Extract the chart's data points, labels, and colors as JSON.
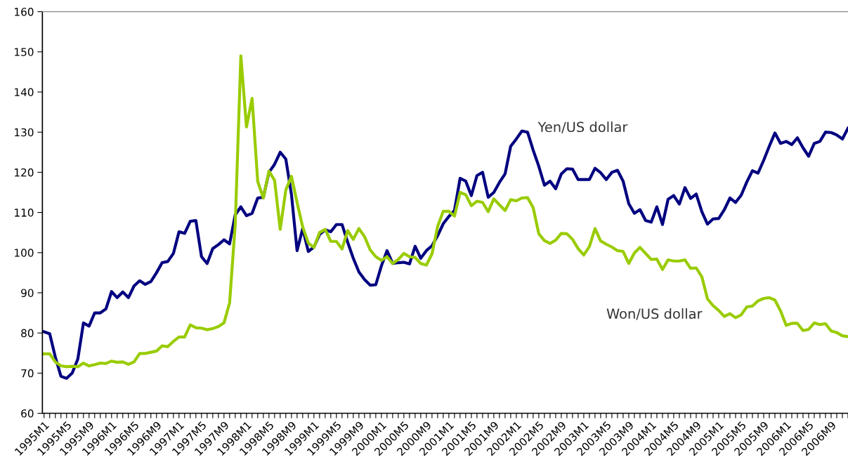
{
  "chart_data": {
    "type": "line",
    "categories": [
      "1995M1",
      null,
      null,
      null,
      "1995M5",
      null,
      null,
      null,
      "1995M9",
      null,
      null,
      null,
      "1996M1",
      null,
      null,
      null,
      "1996M5",
      null,
      null,
      null,
      "1996M9",
      null,
      null,
      null,
      "1997M1",
      null,
      null,
      null,
      "1997M5",
      null,
      null,
      null,
      "1997M9",
      null,
      null,
      null,
      "1998M1",
      null,
      null,
      null,
      "1998M5",
      null,
      null,
      null,
      "1998M9",
      null,
      null,
      null,
      "1999M1",
      null,
      null,
      null,
      "1999M5",
      null,
      null,
      null,
      "1999M9",
      null,
      null,
      null,
      "2000M1",
      null,
      null,
      null,
      "2000M5",
      null,
      null,
      null,
      "2000M9",
      null,
      null,
      null,
      "2001M1",
      null,
      null,
      null,
      "2001M5",
      null,
      null,
      null,
      "2001M9",
      null,
      null,
      null,
      "2002M1",
      null,
      null,
      null,
      "2002M5",
      null,
      null,
      null,
      "2002M9",
      null,
      null,
      null,
      "2003M1",
      null,
      null,
      null,
      "2003M5",
      null,
      null,
      null,
      "2003M9",
      null,
      null,
      null,
      "2004M1",
      null,
      null,
      null,
      "2004M5",
      null,
      null,
      null,
      "2004M9",
      null,
      null,
      null,
      "2005M1",
      null,
      null,
      null,
      "2005M5",
      null,
      null,
      null,
      "2005M9",
      null,
      null,
      null,
      "2006M1",
      null,
      null,
      null,
      "2006M5",
      null,
      null,
      null,
      "2006M9",
      null,
      null,
      null
    ],
    "series": [
      {
        "name": "Yen/US dollar",
        "color": "#000080",
        "values": [
          80.3,
          79.8,
          74,
          69.2,
          68.7,
          70,
          73.5,
          82.5,
          81.7,
          85,
          85,
          86,
          90.3,
          88.8,
          90.2,
          88.8,
          91.7,
          93,
          92.1,
          92.8,
          95,
          97.5,
          97.8,
          99.8,
          105.2,
          104.8,
          107.8,
          108,
          99,
          97.3,
          101,
          102,
          103.2,
          102.2,
          109.4,
          111.4,
          109.2,
          109.8,
          113.6,
          113.8,
          120,
          122,
          125,
          123.3,
          114.5,
          100.5,
          106,
          100.3,
          101.4,
          104.5,
          105.7,
          105.2,
          107,
          107,
          102.6,
          98.6,
          95.2,
          93.3,
          91.9,
          92,
          96.7,
          100.5,
          97.3,
          97.5,
          97.6,
          97.2,
          101.6,
          98.6,
          100.5,
          101.7,
          104.2,
          107.2,
          109,
          110.5,
          118.5,
          117.8,
          114.2,
          119.2,
          120,
          113.8,
          115,
          117.5,
          119.6,
          126.5,
          128.3,
          130.3,
          130,
          125.5,
          121.5,
          116.8,
          117.8,
          115.9,
          119.6,
          120.9,
          120.8,
          118.2,
          118.2,
          118.2,
          121,
          119.9,
          118.2,
          120,
          120.5,
          117.8,
          112.2,
          109.8,
          110.7,
          108,
          107.6,
          111.4,
          107,
          113.3,
          114.2,
          112.1,
          116.2,
          113.5,
          114.6,
          110.2,
          107.1,
          108.4,
          108.5,
          110.7,
          113.6,
          112.5,
          114.3,
          117.6,
          120.4,
          119.8,
          123,
          126.5,
          129.8,
          127.2,
          127.7,
          126.9,
          128.6,
          126.1,
          124,
          127.2,
          127.7,
          130,
          129.9,
          129.3,
          128.3,
          131
        ]
      },
      {
        "name": "Won/US dollar",
        "color": "#99cc00",
        "values": [
          74.8,
          74.8,
          72.8,
          71.8,
          71.6,
          71.7,
          71.6,
          72.5,
          71.8,
          72.1,
          72.5,
          72.4,
          73,
          72.7,
          72.8,
          72.2,
          72.8,
          74.9,
          74.9,
          75.2,
          75.5,
          76.8,
          76.6,
          77.9,
          79,
          79,
          82,
          81.3,
          81.2,
          80.8,
          81.1,
          81.6,
          82.5,
          87.5,
          107,
          149,
          131.3,
          138.4,
          117.7,
          113.6,
          120.3,
          118,
          105.8,
          115.6,
          119,
          112.5,
          106.4,
          102.4,
          101.3,
          105,
          105.8,
          102.8,
          102.8,
          100.9,
          105.5,
          103.3,
          106,
          104,
          100.7,
          99,
          98.1,
          99,
          97.3,
          98.3,
          99.8,
          99,
          98.8,
          97.3,
          96.9,
          99.7,
          106.5,
          110.3,
          110.3,
          109.1,
          115,
          114.4,
          111.7,
          112.8,
          112.5,
          110.2,
          113.4,
          111.9,
          110.5,
          113.2,
          112.9,
          113.6,
          113.7,
          111.2,
          104.7,
          103,
          102.3,
          103.1,
          104.8,
          104.7,
          103.3,
          101,
          99.4,
          101.5,
          106,
          102.9,
          102.1,
          101.4,
          100.5,
          100.3,
          97.3,
          99.9,
          101.3,
          99.8,
          98.3,
          98.4,
          95.8,
          98.2,
          97.9,
          97.9,
          98.2,
          96.1,
          96.2,
          94,
          88.5,
          86.8,
          85.6,
          84.1,
          84.8,
          83.8,
          84.5,
          86.5,
          86.7,
          88,
          88.6,
          88.8,
          88.2,
          85.5,
          81.9,
          82.4,
          82.4,
          80.6,
          80.9,
          82.5,
          82.1,
          82.3,
          80.5,
          80.1,
          79.3,
          79.1
        ]
      }
    ],
    "ylim": [
      60,
      160
    ],
    "yticks": [
      60,
      70,
      80,
      90,
      100,
      110,
      120,
      130,
      140,
      150,
      160
    ],
    "grid": false,
    "marker": "none",
    "line_style": "solid"
  }
}
